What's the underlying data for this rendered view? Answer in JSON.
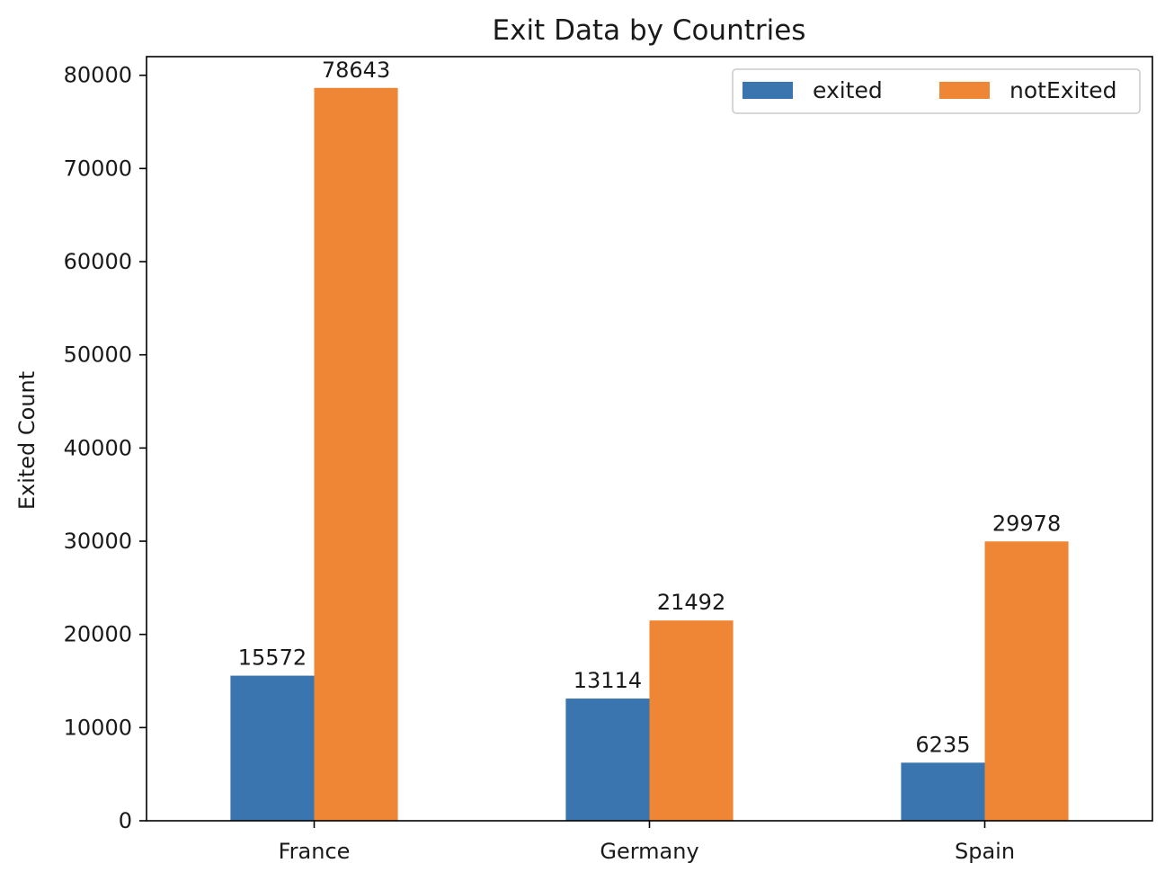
{
  "chart_data": {
    "type": "bar",
    "title": "Exit Data by Countries",
    "xlabel": "",
    "ylabel": "Exited Count",
    "categories": [
      "France",
      "Germany",
      "Spain"
    ],
    "series": [
      {
        "name": "exited",
        "color": "#3a75af",
        "values": [
          15572,
          13114,
          6235
        ]
      },
      {
        "name": "notExited",
        "color": "#ef8636",
        "values": [
          78643,
          21492,
          29978
        ]
      }
    ],
    "ylim": [
      0,
      82000
    ],
    "yticks": [
      0,
      10000,
      20000,
      30000,
      40000,
      50000,
      60000,
      70000,
      80000
    ],
    "grid": false,
    "legend": {
      "placement": "top-right",
      "columns": 2
    }
  }
}
